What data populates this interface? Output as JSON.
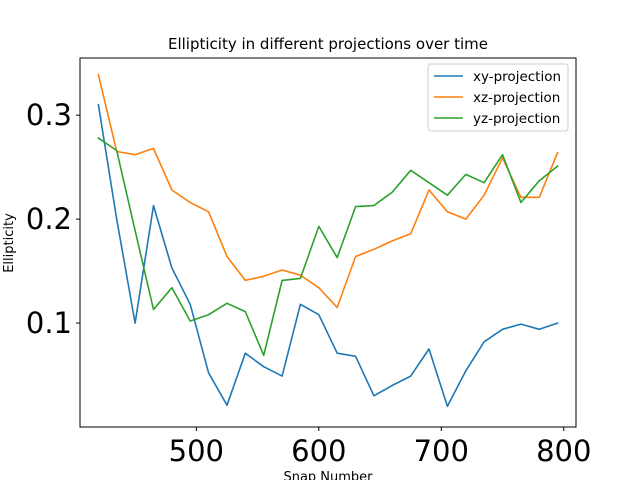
{
  "chart_data": {
    "type": "line",
    "title": "Ellipticity in different projections over time",
    "xlabel": "Snap Number",
    "ylabel": "Ellipticity",
    "xlim": [
      405,
      810
    ],
    "ylim": [
      0.0,
      0.355
    ],
    "xticks": [
      500,
      600,
      700,
      800
    ],
    "yticks": [
      0.1,
      0.2,
      0.3
    ],
    "grid": false,
    "legend_position": "top-right",
    "x": [
      420,
      435,
      450,
      465,
      480,
      495,
      510,
      525,
      540,
      555,
      570,
      585,
      600,
      615,
      630,
      645,
      660,
      675,
      690,
      705,
      720,
      735,
      750,
      765,
      780,
      795
    ],
    "series": [
      {
        "name": "xy-projection",
        "color": "#1f77b4",
        "values": [
          0.31,
          0.2,
          0.1,
          0.213,
          0.153,
          0.118,
          0.052,
          0.021,
          0.071,
          0.058,
          0.049,
          0.118,
          0.108,
          0.071,
          0.068,
          0.03,
          0.04,
          0.049,
          0.075,
          0.02,
          0.054,
          0.082,
          0.094,
          0.099,
          0.094,
          0.1
        ]
      },
      {
        "name": "xz-projection",
        "color": "#ff7f0e",
        "values": [
          0.339,
          0.265,
          0.262,
          0.268,
          0.228,
          0.216,
          0.207,
          0.164,
          0.141,
          0.145,
          0.151,
          0.146,
          0.134,
          0.115,
          0.164,
          0.171,
          0.179,
          0.186,
          0.228,
          0.207,
          0.2,
          0.223,
          0.259,
          0.221,
          0.221,
          0.264
        ]
      },
      {
        "name": "yz-projection",
        "color": "#2ca02c",
        "values": [
          0.278,
          0.266,
          0.189,
          0.113,
          0.134,
          0.102,
          0.108,
          0.119,
          0.111,
          0.069,
          0.141,
          0.143,
          0.193,
          0.163,
          0.212,
          0.213,
          0.226,
          0.247,
          0.235,
          0.223,
          0.243,
          0.235,
          0.262,
          0.216,
          0.237,
          0.251
        ]
      }
    ]
  }
}
